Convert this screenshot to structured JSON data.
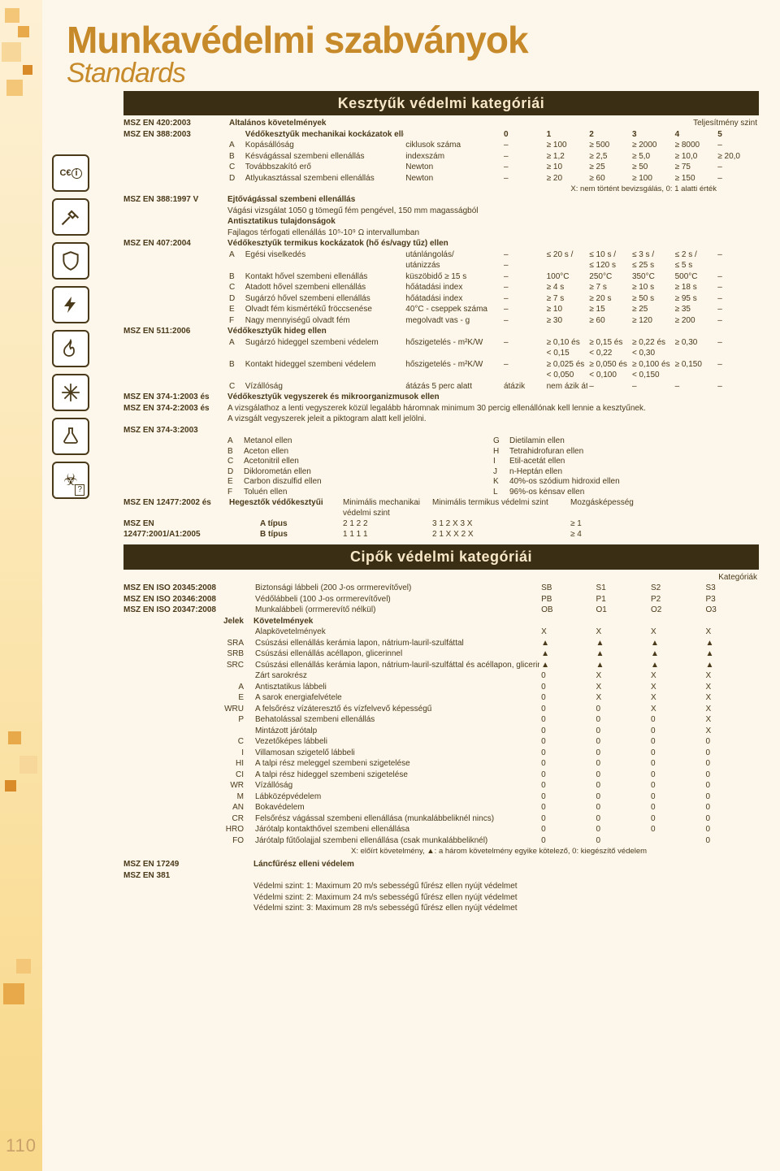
{
  "page_number": "110",
  "title": "Munkavédelmi szabványok",
  "subtitle": "Standards",
  "section1": "Kesztyűk védelmi kategóriái",
  "section2": "Cipők védelmi kategóriái",
  "colors": {
    "accent": "#c78a2a",
    "dark": "#3a2e15",
    "text": "#4a3a1a",
    "bg": "#fdf6ea"
  },
  "sidebar_icons": [
    {
      "name": "ce-info-icon",
      "glyph": "C€ ⓘ"
    },
    {
      "name": "hammer-icon",
      "glyph": "⚒"
    },
    {
      "name": "shield-icon",
      "glyph": "🛡"
    },
    {
      "name": "bolt-icon",
      "glyph": "⚡"
    },
    {
      "name": "flame-icon",
      "glyph": "🔥"
    },
    {
      "name": "snow-icon",
      "glyph": "❄"
    },
    {
      "name": "flask-icon",
      "glyph": "⚗"
    },
    {
      "name": "biohazard-icon",
      "glyph": "☣"
    }
  ],
  "gloves": {
    "perf_label": "Teljesítmény szint",
    "std420": {
      "code": "MSZ EN 420:2003",
      "name": "Általános követelmények"
    },
    "std388": {
      "code": "MSZ EN 388:2003",
      "name": "Védőkesztyűk mechanikai kockázatok ellen",
      "levels": [
        "0",
        "1",
        "2",
        "3",
        "4",
        "5"
      ]
    },
    "mech": [
      {
        "k": "A",
        "n": "Kopásállóság",
        "u": "ciklusok száma",
        "v": [
          "–",
          "≥ 100",
          "≥ 500",
          "≥ 2000",
          "≥ 8000",
          "–"
        ]
      },
      {
        "k": "B",
        "n": "Késvágással szembeni ellenállás",
        "u": "indexszám",
        "v": [
          "–",
          "≥ 1,2",
          "≥ 2,5",
          "≥ 5,0",
          "≥ 10,0",
          "≥ 20,0"
        ]
      },
      {
        "k": "C",
        "n": "Továbbszakító erő",
        "u": "Newton",
        "v": [
          "–",
          "≥ 10",
          "≥ 25",
          "≥ 50",
          "≥ 75",
          "–"
        ]
      },
      {
        "k": "D",
        "n": "Átlyukasztással szembeni ellenállás",
        "u": "Newton",
        "v": [
          "–",
          "≥ 20",
          "≥ 60",
          "≥ 100",
          "≥ 150",
          "–"
        ]
      }
    ],
    "mech_note": "X: nem történt bevizsgálás, 0: 1 alatti érték",
    "std388v": {
      "code": "MSZ EN 388:1997 V",
      "name": "Ejtővágással szembeni ellenállás",
      "note": "Vágási vizsgálat 1050 g tömegű fém pengével, 150 mm magasságból"
    },
    "antistat": {
      "t": "Antisztatikus tulajdonságok",
      "n": "Fajlagos térfogati ellenállás 10⁵-10⁹ Ω intervallumban"
    },
    "std407": {
      "code": "MSZ EN 407:2004",
      "name": "Védőkesztyűk termikus kockázatok (hő és/vagy tűz) ellen"
    },
    "therm": [
      {
        "k": "A",
        "n": "Égési viselkedés",
        "u": "utánlángolás/",
        "v": [
          "–",
          "≤ 20 s /",
          "≤ 10 s /",
          "≤ 3 s /",
          "≤ 2 s /",
          "–"
        ]
      },
      {
        "k": "",
        "n": "",
        "u": "utánizzás",
        "v": [
          "–",
          "",
          "≤ 120 s",
          "≤ 25 s",
          "≤ 5 s",
          ""
        ]
      },
      {
        "k": "B",
        "n": "Kontakt hővel szembeni ellenállás",
        "u": "küszöbidő ≥ 15 s",
        "v": [
          "–",
          "100°C",
          "250°C",
          "350°C",
          "500°C",
          "–"
        ]
      },
      {
        "k": "C",
        "n": "Átadott hővel szembeni ellenállás",
        "u": "hőátadási index",
        "v": [
          "–",
          "≥ 4 s",
          "≥ 7 s",
          "≥ 10 s",
          "≥ 18 s",
          "–"
        ]
      },
      {
        "k": "D",
        "n": "Sugárzó hővel szembeni ellenállás",
        "u": "hőátadási index",
        "v": [
          "–",
          "≥ 7 s",
          "≥ 20 s",
          "≥ 50 s",
          "≥ 95 s",
          "–"
        ]
      },
      {
        "k": "E",
        "n": "Olvadt fém kismértékű fröccsenése",
        "u": "40°C - cseppek száma",
        "v": [
          "–",
          "≥ 10",
          "≥ 15",
          "≥ 25",
          "≥ 35",
          "–"
        ]
      },
      {
        "k": "F",
        "n": "Nagy mennyiségű olvadt fém",
        "u": "megolvadt vas - g",
        "v": [
          "–",
          "≥ 30",
          "≥ 60",
          "≥ 120",
          "≥ 200",
          "–"
        ]
      }
    ],
    "std511": {
      "code": "MSZ EN 511:2006",
      "name": "Védőkesztyűk hideg ellen"
    },
    "cold": [
      {
        "k": "A",
        "n": "Sugárzó hideggel szembeni védelem",
        "u": "hőszigetelés - m²K/W",
        "v": [
          "–",
          "≥ 0,10 és",
          "≥ 0,15 és",
          "≥ 0,22 és",
          "≥ 0,30",
          "–"
        ]
      },
      {
        "k": "",
        "n": "",
        "u": "",
        "v": [
          "",
          "< 0,15",
          "< 0,22",
          "< 0,30",
          "",
          ""
        ]
      },
      {
        "k": "B",
        "n": "Kontakt hideggel szembeni védelem",
        "u": "hőszigetelés - m²K/W",
        "v": [
          "–",
          "≥ 0,025 és",
          "≥ 0,050 és",
          "≥ 0,100 és",
          "≥ 0,150",
          "–"
        ]
      },
      {
        "k": "",
        "n": "",
        "u": "",
        "v": [
          "",
          "< 0,050",
          "< 0,100",
          "< 0,150",
          "",
          ""
        ]
      },
      {
        "k": "C",
        "n": "Vízállóság",
        "u": "átázás 5 perc alatt",
        "v": [
          "átázik",
          "nem ázik át",
          "–",
          "–",
          "–",
          "–"
        ]
      }
    ],
    "std374_1": {
      "code": "MSZ EN 374-1:2003 és",
      "name": "Védőkesztyűk vegyszerek és mikroorganizmusok ellen"
    },
    "std374_2": {
      "code": "MSZ EN 374-2:2003 és",
      "note1": "A vizsgálathoz a lenti vegyszerek közül legalább háromnak minimum 30 percig ellenállónak kell lennie a kesztyűnek.",
      "note2": "A vizsgált vegyszerek jeleit a piktogram alatt kell jelölni."
    },
    "std374_3": {
      "code": "MSZ EN 374-3:2003"
    },
    "chemicals": [
      {
        "k": "A",
        "n": "Metanol ellen"
      },
      {
        "k": "G",
        "n": "Dietilamin ellen"
      },
      {
        "k": "B",
        "n": "Aceton ellen"
      },
      {
        "k": "H",
        "n": "Tetrahidrofuran ellen"
      },
      {
        "k": "C",
        "n": "Acetonitril ellen"
      },
      {
        "k": "I",
        "n": "Etil-acetát ellen"
      },
      {
        "k": "D",
        "n": "Diklorometán ellen"
      },
      {
        "k": "J",
        "n": "n-Heptán ellen"
      },
      {
        "k": "E",
        "n": "Carbon diszulfid ellen"
      },
      {
        "k": "K",
        "n": "40%-os szódium hidroxid ellen"
      },
      {
        "k": "F",
        "n": "Toluén ellen"
      },
      {
        "k": "L",
        "n": "96%-os kénsav ellen"
      }
    ],
    "std12477": {
      "code": "MSZ EN 12477:2002 és",
      "name": "Hegesztők védőkesztyűi",
      "h1": "Minimális mechanikai",
      "h1b": "védelmi szint",
      "h2": "Minimális termikus védelmi szint",
      "h3": "Mozgásképesség"
    },
    "std12477a": {
      "code": "MSZ EN 12477:2001/A1:2005"
    },
    "weld": [
      {
        "t": "A típus",
        "a": "2 1 2 2",
        "b": "3 1 2 X 3 X",
        "c": "≥ 1"
      },
      {
        "t": "B típus",
        "a": "1 1 1 1",
        "b": "2 1 X X 2 X",
        "c": "≥ 4"
      }
    ]
  },
  "shoes": {
    "cat_label": "Kategóriák",
    "rows1": [
      {
        "code": "MSZ EN ISO 20345:2008",
        "n": "Biztonsági lábbeli (200 J-os orrmerevítővel)",
        "v": [
          "SB",
          "S1",
          "S2",
          "S3"
        ]
      },
      {
        "code": "MSZ EN ISO 20346:2008",
        "n": "Védőlábbeli (100 J-os orrmerevítővel)",
        "v": [
          "PB",
          "P1",
          "P2",
          "P3"
        ]
      },
      {
        "code": "MSZ EN ISO 20347:2008",
        "n": "Munkalábbeli (orrmerevítő nélkül)",
        "v": [
          "OB",
          "O1",
          "O2",
          "O3"
        ]
      }
    ],
    "jelek": "Jelek",
    "kov": "Követelmények",
    "rows2": [
      {
        "j": "",
        "n": "Alapkövetelmények",
        "v": [
          "X",
          "X",
          "X",
          "X"
        ]
      },
      {
        "j": "SRA",
        "n": "Csúszási ellenállás kerámia lapon, nátrium-lauril-szulfáttal",
        "v": [
          "▲",
          "▲",
          "▲",
          "▲"
        ]
      },
      {
        "j": "SRB",
        "n": "Csúszási ellenállás acéllapon, glicerinnel",
        "v": [
          "▲",
          "▲",
          "▲",
          "▲"
        ]
      },
      {
        "j": "SRC",
        "n": "Csúszási ellenállás kerámia lapon, nátrium-lauril-szulfáttal és acéllapon, glicerinnel",
        "v": [
          "▲",
          "▲",
          "▲",
          "▲"
        ]
      },
      {
        "j": "",
        "n": "Zárt sarokrész",
        "v": [
          "0",
          "X",
          "X",
          "X"
        ]
      },
      {
        "j": "A",
        "n": "Antisztatikus lábbeli",
        "v": [
          "0",
          "X",
          "X",
          "X"
        ]
      },
      {
        "j": "E",
        "n": "A sarok energiafelvétele",
        "v": [
          "0",
          "X",
          "X",
          "X"
        ]
      },
      {
        "j": "WRU",
        "n": "A felsőrész vízáteresztő és vízfelvevő képességű",
        "v": [
          "0",
          "0",
          "X",
          "X"
        ]
      },
      {
        "j": "P",
        "n": "Behatolással szembeni ellenállás",
        "v": [
          "0",
          "0",
          "0",
          "X"
        ]
      },
      {
        "j": "",
        "n": "Mintázott járótalp",
        "v": [
          "0",
          "0",
          "0",
          "X"
        ]
      },
      {
        "j": "C",
        "n": "Vezetőképes lábbeli",
        "v": [
          "0",
          "0",
          "0",
          "0"
        ]
      },
      {
        "j": "I",
        "n": "Villamosan szigetelő lábbeli",
        "v": [
          "0",
          "0",
          "0",
          "0"
        ]
      },
      {
        "j": "HI",
        "n": "A talpi rész meleggel szembeni szigetelése",
        "v": [
          "0",
          "0",
          "0",
          "0"
        ]
      },
      {
        "j": "CI",
        "n": "A talpi rész hideggel szembeni szigetelése",
        "v": [
          "0",
          "0",
          "0",
          "0"
        ]
      },
      {
        "j": "WR",
        "n": "Vízállóság",
        "v": [
          "0",
          "0",
          "0",
          "0"
        ]
      },
      {
        "j": "M",
        "n": "Lábközépvédelem",
        "v": [
          "0",
          "0",
          "0",
          "0"
        ]
      },
      {
        "j": "AN",
        "n": "Bokavédelem",
        "v": [
          "0",
          "0",
          "0",
          "0"
        ]
      },
      {
        "j": "CR",
        "n": "Felsőrész vágással szembeni ellenállása (munkalábbeliknél nincs)",
        "v": [
          "0",
          "0",
          "0",
          "0"
        ]
      },
      {
        "j": "HRO",
        "n": "Járótalp kontakthővel szembeni ellenállása",
        "v": [
          "0",
          "0",
          "0",
          "0"
        ]
      },
      {
        "j": "FO",
        "n": "Járótalp fűtőolajjal szembeni ellenállása (csak munkalábbeliknél)",
        "v": [
          "0",
          "0",
          "",
          "0"
        ]
      }
    ],
    "legend": "X: előírt követelmény, ▲: a három követelmény egyike kötelező, 0: kiegészítő védelem",
    "std17249": {
      "code": "MSZ EN 17249",
      "name": "Láncfűrész elleni védelem"
    },
    "std381": {
      "code": "MSZ EN 381"
    },
    "levels": [
      "Védelmi szint: 1: Maximum 20 m/s sebességű fűrész ellen nyújt védelmet",
      "Védelmi szint: 2: Maximum 24 m/s sebességű fűrész ellen nyújt védelmet",
      "Védelmi szint: 3: Maximum 28 m/s sebességű fűrész ellen nyújt védelmet"
    ]
  }
}
